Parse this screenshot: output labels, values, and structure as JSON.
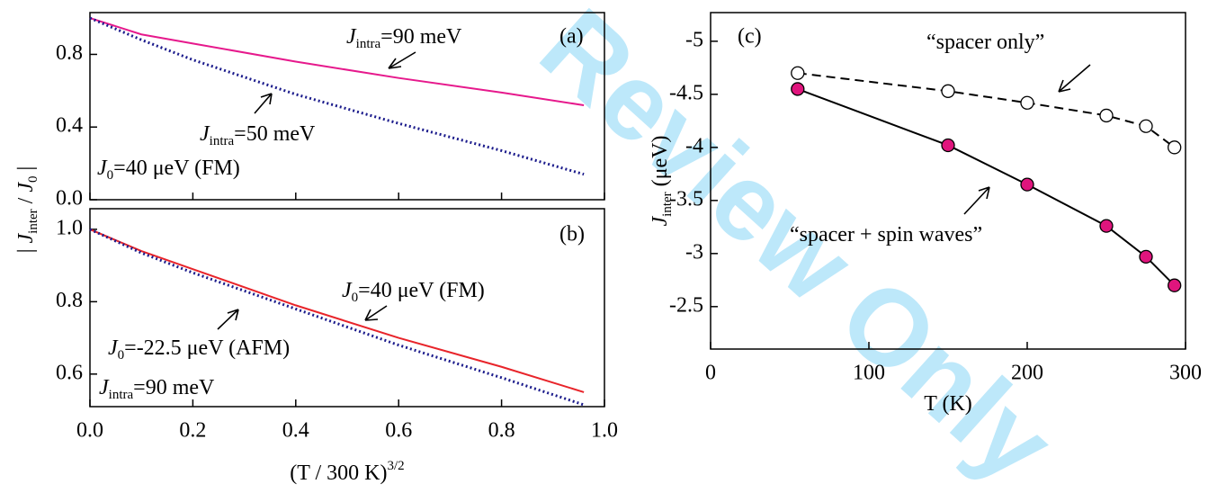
{
  "watermark": "Review Only",
  "chart_data": [
    {
      "type": "line",
      "panel": "(a)",
      "x": [
        0,
        0.1,
        0.2,
        0.4,
        0.6,
        0.8,
        0.96
      ],
      "xlim": [
        0,
        1
      ],
      "ylim": [
        0,
        1.03
      ],
      "xticks": [
        0,
        0.2,
        0.4,
        0.6,
        0.8,
        1
      ],
      "yticks": [
        {
          "value": 0,
          "label": "0.0"
        },
        0.4,
        0.8
      ],
      "ylabel": [
        {
          "t": "| "
        },
        {
          "t": "J",
          "s": "i"
        },
        {
          "t": "inter",
          "s": "sub"
        },
        {
          "t": "  / "
        },
        {
          "t": "J",
          "s": "i"
        },
        {
          "t": "0",
          "s": "sub"
        },
        {
          "t": " |"
        }
      ],
      "series": [
        {
          "color": "#e6198c",
          "dash": "solid",
          "values": [
            1.0,
            0.91,
            0.86,
            0.76,
            0.67,
            0.59,
            0.52
          ]
        },
        {
          "color": "#1c1c8c",
          "dash": "dot",
          "values": [
            1.0,
            0.88,
            0.77,
            0.58,
            0.42,
            0.27,
            0.14
          ]
        }
      ],
      "annotations": [
        [
          {
            "t": "J",
            "s": "i"
          },
          {
            "t": "intra",
            "s": "sub"
          },
          {
            "t": "=90 meV"
          }
        ],
        [
          {
            "t": "J",
            "s": "i"
          },
          {
            "t": "intra",
            "s": "sub"
          },
          {
            "t": "=50 meV"
          }
        ],
        [
          {
            "t": "J",
            "s": "i"
          },
          {
            "t": "0",
            "s": "sub"
          },
          {
            "t": "=40 μeV (FM)"
          }
        ]
      ]
    },
    {
      "type": "line",
      "panel": "(b)",
      "x": [
        0,
        0.1,
        0.2,
        0.4,
        0.6,
        0.8,
        0.96
      ],
      "xlim": [
        0,
        1
      ],
      "ylim": [
        0.51,
        1.057
      ],
      "xticks": [
        {
          "value": 0,
          "label": "0.0"
        },
        0.2,
        0.4,
        0.6,
        0.8,
        {
          "value": 1,
          "label": "1.0"
        }
      ],
      "yticks": [
        0.6,
        0.8,
        {
          "value": 1,
          "label": "1.0"
        }
      ],
      "xlabel": [
        {
          "t": "(T / 300 K)"
        },
        {
          "t": "3/2",
          "s": "sup"
        }
      ],
      "series": [
        {
          "color": "#e8242a",
          "dash": "solid",
          "values": [
            1.0,
            0.94,
            0.89,
            0.79,
            0.7,
            0.62,
            0.55
          ]
        },
        {
          "color": "#1c1c8c",
          "dash": "dot",
          "values": [
            1.0,
            0.935,
            0.88,
            0.78,
            0.68,
            0.59,
            0.515
          ]
        }
      ],
      "annotations": [
        [
          {
            "t": "J",
            "s": "i"
          },
          {
            "t": "0",
            "s": "sub"
          },
          {
            "t": "=40 μeV (FM)"
          }
        ],
        [
          {
            "t": "J",
            "s": "i"
          },
          {
            "t": "0",
            "s": "sub"
          },
          {
            "t": "=-22.5 μeV (AFM)"
          }
        ],
        [
          {
            "t": "J",
            "s": "i"
          },
          {
            "t": "intra",
            "s": "sub"
          },
          {
            "t": "=90 meV"
          }
        ]
      ]
    },
    {
      "type": "line",
      "panel": "(c)",
      "x": [
        55,
        150,
        200,
        250,
        275,
        293
      ],
      "xlim": [
        0,
        300
      ],
      "ylim": [
        -5.27,
        -2.1
      ],
      "yinvert": true,
      "xticks": [
        0,
        100,
        200,
        300
      ],
      "yticks": [
        -5,
        -4.5,
        -4,
        -3.5,
        -3,
        -2.5
      ],
      "xlabel": [
        {
          "t": "T (K)"
        }
      ],
      "ylabel": [
        {
          "t": "J",
          "s": "i"
        },
        {
          "t": "inter",
          "s": "sub"
        },
        {
          "t": " (μeV)"
        }
      ],
      "series": [
        {
          "color": "#ffffff",
          "dash": "dash",
          "marker": true,
          "values": [
            -4.7,
            -4.53,
            -4.42,
            -4.3,
            -4.2,
            -4.0
          ]
        },
        {
          "color": "#e0157d",
          "dash": "solid",
          "marker": true,
          "values": [
            -4.55,
            -4.02,
            -3.65,
            -3.26,
            -2.97,
            -2.7
          ]
        }
      ],
      "annotations": [
        [
          {
            "t": "“spacer only”"
          }
        ],
        [
          {
            "t": "“spacer + spin waves”"
          }
        ]
      ]
    }
  ]
}
